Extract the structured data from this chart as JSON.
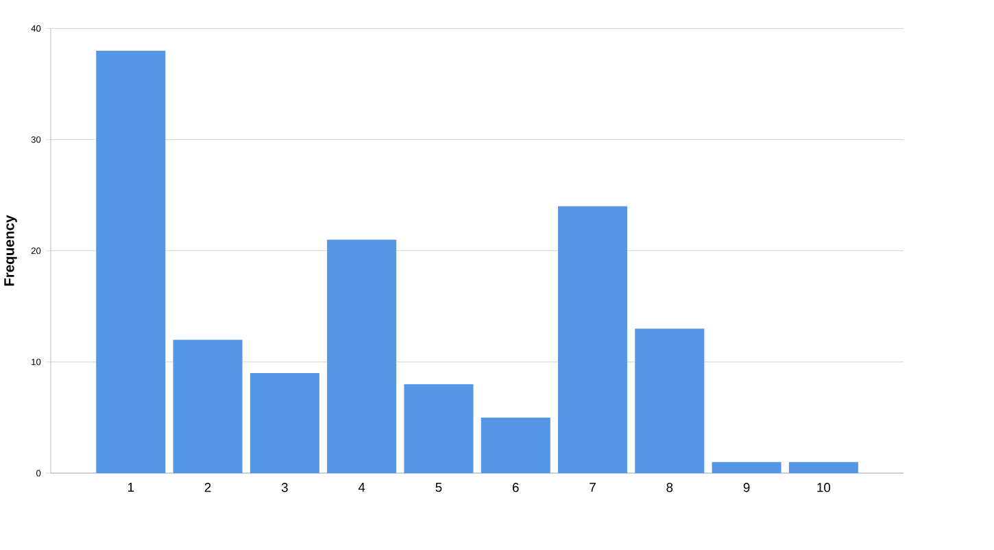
{
  "chart_data": {
    "type": "bar",
    "ylabel": "Frequency",
    "categories": [
      "1",
      "2",
      "3",
      "4",
      "5",
      "6",
      "7",
      "8",
      "9",
      "10"
    ],
    "values": [
      38,
      12,
      9,
      21,
      8,
      5,
      24,
      13,
      1,
      1
    ],
    "color": "#5596e6",
    "ylim": [
      0,
      40
    ],
    "yticks": [
      0,
      10,
      20,
      30,
      40
    ],
    "grid": "y"
  }
}
